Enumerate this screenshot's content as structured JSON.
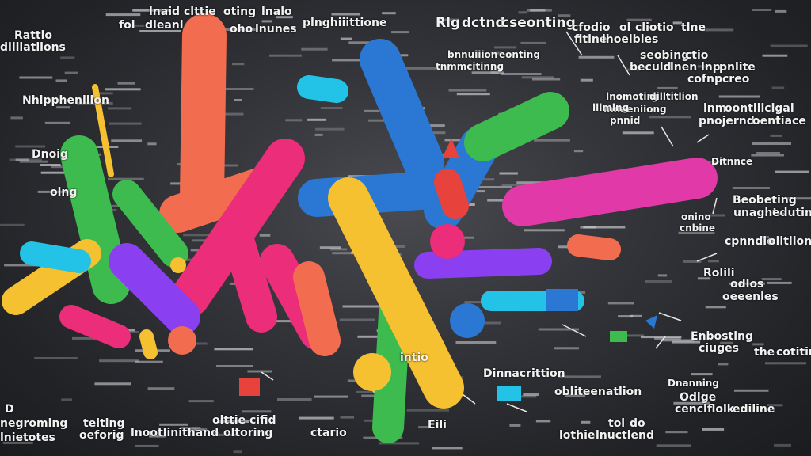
{
  "palette": {
    "background": "#2a2b2f",
    "orange": "#f26d4f",
    "blue": "#2a78d4",
    "green": "#3dbb4f",
    "yellow": "#f6c131",
    "pink": "#ec2d7a",
    "magenta": "#e13aa8",
    "purple": "#8a3ff0",
    "cyan": "#22c3e6",
    "red": "#e8423c"
  },
  "labels": [
    "Rattio",
    "dilliatiions",
    "lnaid",
    "clttie",
    "oting",
    "lnalo",
    "fol",
    "dleanl",
    "oho",
    "lnunes",
    "plnghiiittione",
    "Rlg",
    "dctnd",
    "cseonting",
    "cfodio",
    "ol",
    "cliotio",
    "tlne",
    "fitine",
    "lhoelbies",
    "bnnuiiion",
    "eonting",
    "tnmmcitinng",
    "seobing",
    "ctio",
    "beculd",
    "lnen",
    "lnp",
    "pnlite",
    "cofnpcreo",
    "lnomotirg",
    "dilltitlion",
    "lnnaeniiong",
    "lnm",
    "oontilicigal",
    "pnojernd",
    "oentiace",
    "Ditnnce",
    "Beobeting",
    "unaght",
    "edutinne",
    "onino",
    "cnbine",
    "cpnndio",
    "olltiion",
    "Rolili",
    "odlos",
    "oeeenles",
    "Enbosting",
    "ciuges",
    "the",
    "cotitine",
    "Dnanning",
    "Odlge",
    "cencl",
    "flolk",
    "ediline",
    "tol",
    "do",
    "lothie",
    "lnuctlend",
    "Eili",
    "ctario",
    "D",
    "negroming",
    "telting",
    "oeforig",
    "lnietotes",
    "lnootlinithand",
    "oltoring",
    "olttie",
    "cifid",
    "iiiming",
    "pnnid",
    "Nhipphenliion",
    "Dnoig",
    "olng",
    "Dinnacrittion",
    "intio",
    "obliteenatlion"
  ]
}
